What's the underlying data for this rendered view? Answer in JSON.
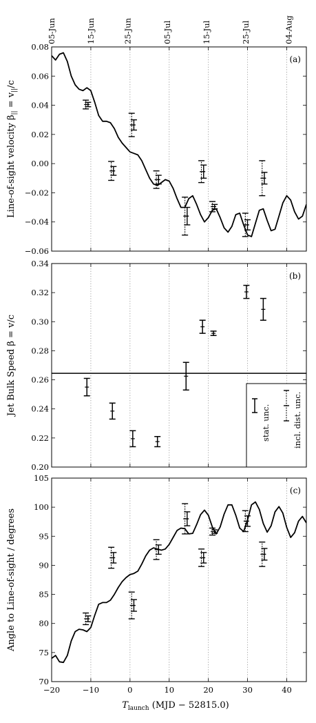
{
  "chart_data": {
    "type": "scatter",
    "x_axis": {
      "label_main": "T",
      "label_sub": "launch",
      "label_rest": " (MJD − 52815.0)",
      "range": [
        -20,
        45
      ],
      "ticks": [
        -20,
        -10,
        0,
        10,
        20,
        30,
        40
      ],
      "tick_labels": [
        "−20",
        "−10",
        "0",
        "10",
        "20",
        "30",
        "40"
      ]
    },
    "top_axis": {
      "ticks_x": [
        -20,
        -10,
        -0.6,
        9.5,
        19.5,
        29.5,
        40.5
      ],
      "labels": [
        "05-Jun",
        "15-Jun",
        "25-Jun",
        "05-Jul",
        "15-Jul",
        "25-Jul",
        "04-Aug"
      ]
    },
    "panels": [
      {
        "id": "a",
        "panel_label": "(a)",
        "ylabel_main": "Line-of-sight velocity β",
        "ylabel_sub": "||",
        "ylabel_rest": " = v",
        "ylabel_sub2": "||",
        "ylabel_end": "/c",
        "ylim": [
          -0.06,
          0.08
        ],
        "yticks": [
          -0.06,
          -0.04,
          -0.02,
          0.0,
          0.02,
          0.04,
          0.06,
          0.08
        ],
        "ytick_labels": [
          "−0.06",
          "−0.04",
          "−0.02",
          "0.00",
          "0.02",
          "0.04",
          "0.06",
          "0.08"
        ],
        "curve": {
          "x": [
            -20,
            -19,
            -18,
            -17,
            -16,
            -15,
            -14,
            -13,
            -12,
            -11,
            -10,
            -9,
            -8,
            -7,
            -6,
            -5,
            -4,
            -3,
            -2,
            -1,
            0,
            1,
            2,
            3,
            4,
            5,
            6,
            7,
            8,
            9,
            10,
            11,
            12,
            13,
            14,
            15,
            16,
            17,
            18,
            19,
            20,
            21,
            22,
            23,
            24,
            25,
            26,
            27,
            28,
            29,
            30,
            31,
            32,
            33,
            34,
            35,
            36,
            37,
            38,
            39,
            40,
            41,
            42,
            43,
            44,
            45
          ],
          "y": [
            0.074,
            0.071,
            0.075,
            0.076,
            0.07,
            0.06,
            0.054,
            0.051,
            0.05,
            0.052,
            0.05,
            0.042,
            0.033,
            0.029,
            0.029,
            0.028,
            0.024,
            0.018,
            0.014,
            0.011,
            0.008,
            0.007,
            0.006,
            0.002,
            -0.004,
            -0.01,
            -0.014,
            -0.015,
            -0.013,
            -0.011,
            -0.012,
            -0.017,
            -0.024,
            -0.03,
            -0.03,
            -0.024,
            -0.022,
            -0.028,
            -0.035,
            -0.04,
            -0.037,
            -0.032,
            -0.031,
            -0.037,
            -0.044,
            -0.047,
            -0.043,
            -0.035,
            -0.034,
            -0.042,
            -0.049,
            -0.05,
            -0.041,
            -0.032,
            -0.031,
            -0.039,
            -0.046,
            -0.045,
            -0.036,
            -0.027,
            -0.022,
            -0.025,
            -0.033,
            -0.038,
            -0.036,
            -0.028
          ]
        },
        "points": [
          {
            "x": -11,
            "y": 0.0405,
            "yerr_stat": 0.0015,
            "yerr_tot": 0.003,
            "xerr": 0.7
          },
          {
            "x": -4.5,
            "y": -0.005,
            "yerr_stat": 0.003,
            "yerr_tot": 0.0065,
            "xerr": 0.7
          },
          {
            "x": 0.7,
            "y": 0.0265,
            "yerr_stat": 0.0035,
            "yerr_tot": 0.008,
            "xerr": 0.7
          },
          {
            "x": 7,
            "y": -0.011,
            "yerr_stat": 0.003,
            "yerr_tot": 0.006,
            "xerr": 0.7
          },
          {
            "x": 14.3,
            "y": -0.036,
            "yerr_stat": 0.006,
            "yerr_tot": 0.013,
            "xerr": 0.7
          },
          {
            "x": 18.5,
            "y": -0.0055,
            "yerr_stat": 0.0045,
            "yerr_tot": 0.0075,
            "xerr": 0.7
          },
          {
            "x": 21.3,
            "y": -0.0295,
            "yerr_stat": 0.0015,
            "yerr_tot": 0.0035,
            "xerr": 0.7
          },
          {
            "x": 29.7,
            "y": -0.042,
            "yerr_stat": 0.0035,
            "yerr_tot": 0.008,
            "xerr": 0.7
          },
          {
            "x": 34,
            "y": -0.01,
            "yerr_stat": 0.004,
            "yerr_tot": 0.012,
            "xerr": 0.7
          }
        ]
      },
      {
        "id": "b",
        "panel_label": "(b)",
        "ylabel_main": "Jet Bulk Speed β = v/c",
        "ylim": [
          0.2,
          0.34
        ],
        "yticks": [
          0.2,
          0.22,
          0.24,
          0.26,
          0.28,
          0.3,
          0.32,
          0.34
        ],
        "ytick_labels": [
          "0.20",
          "0.22",
          "0.24",
          "0.26",
          "0.28",
          "0.30",
          "0.32",
          "0.34"
        ],
        "hline": 0.2645,
        "points": [
          {
            "x": -11,
            "y": 0.255,
            "yerr": 0.006
          },
          {
            "x": -4.5,
            "y": 0.2385,
            "yerr": 0.0055
          },
          {
            "x": 0.7,
            "y": 0.2195,
            "yerr": 0.0055
          },
          {
            "x": 7,
            "y": 0.2175,
            "yerr": 0.0035
          },
          {
            "x": 14.3,
            "y": 0.2625,
            "yerr": 0.0095
          },
          {
            "x": 18.5,
            "y": 0.2965,
            "yerr": 0.0045
          },
          {
            "x": 21.3,
            "y": 0.292,
            "yerr": 0.0015
          },
          {
            "x": 29.7,
            "y": 0.3205,
            "yerr": 0.0045
          },
          {
            "x": 34,
            "y": 0.3085,
            "yerr": 0.0075
          }
        ],
        "legend": {
          "position": "lower-right",
          "entries": [
            "stat. unc.",
            "incl. dist. unc."
          ]
        }
      },
      {
        "id": "c",
        "panel_label": "(c)",
        "ylabel_main": "Angle to Line-of-sight / degrees",
        "ylim": [
          70,
          105
        ],
        "yticks": [
          70,
          75,
          80,
          85,
          90,
          95,
          100,
          105
        ],
        "ytick_labels": [
          "70",
          "75",
          "80",
          "85",
          "90",
          "95",
          "100",
          "105"
        ],
        "curve": {
          "x": [
            -20,
            -19,
            -18,
            -17,
            -16,
            -15,
            -14,
            -13,
            -12,
            -11,
            -10,
            -9,
            -8,
            -7,
            -6,
            -5,
            -4,
            -3,
            -2,
            -1,
            0,
            1,
            2,
            3,
            4,
            5,
            6,
            7,
            8,
            9,
            10,
            11,
            12,
            13,
            14,
            15,
            16,
            17,
            18,
            19,
            20,
            21,
            22,
            23,
            24,
            25,
            26,
            27,
            28,
            29,
            30,
            31,
            32,
            33,
            34,
            35,
            36,
            37,
            38,
            39,
            40,
            41,
            42,
            43,
            44,
            45
          ],
          "y": [
            74.0,
            74.5,
            73.4,
            73.3,
            74.5,
            77.0,
            78.6,
            79.0,
            78.9,
            78.6,
            79.3,
            81.4,
            83.3,
            83.6,
            83.6,
            84.0,
            85.0,
            86.2,
            87.2,
            87.9,
            88.4,
            88.6,
            89.0,
            90.2,
            91.6,
            92.6,
            93.0,
            92.8,
            92.6,
            92.8,
            93.6,
            94.8,
            96.0,
            96.4,
            96.3,
            95.4,
            95.5,
            97.0,
            98.7,
            99.5,
            98.6,
            96.6,
            95.4,
            96.6,
            98.8,
            100.4,
            100.4,
            98.6,
            96.4,
            95.8,
            97.8,
            100.4,
            100.9,
            99.6,
            97.2,
            95.7,
            96.8,
            99.2,
            100.1,
            99.0,
            96.5,
            94.8,
            95.6,
            97.6,
            98.4,
            97.3
          ]
        },
        "points": [
          {
            "x": -11,
            "y": 80.8,
            "yerr_stat": 0.5,
            "yerr_tot": 1.0,
            "xerr": 0.7
          },
          {
            "x": -4.5,
            "y": 91.3,
            "yerr_stat": 0.9,
            "yerr_tot": 1.8,
            "xerr": 0.7
          },
          {
            "x": 0.7,
            "y": 83.1,
            "yerr_stat": 1.0,
            "yerr_tot": 2.3,
            "xerr": 0.7
          },
          {
            "x": 7,
            "y": 92.7,
            "yerr_stat": 0.8,
            "yerr_tot": 1.7,
            "xerr": 0.7
          },
          {
            "x": 14.3,
            "y": 98.0,
            "yerr_stat": 1.2,
            "yerr_tot": 2.6,
            "xerr": 0.7
          },
          {
            "x": 18.5,
            "y": 91.3,
            "yerr_stat": 0.9,
            "yerr_tot": 1.5,
            "xerr": 0.7
          },
          {
            "x": 21.3,
            "y": 95.8,
            "yerr_stat": 0.3,
            "yerr_tot": 0.6,
            "xerr": 0.7
          },
          {
            "x": 29.7,
            "y": 97.6,
            "yerr_stat": 0.9,
            "yerr_tot": 1.8,
            "xerr": 0.7
          },
          {
            "x": 34,
            "y": 91.9,
            "yerr_stat": 1.0,
            "yerr_tot": 2.1,
            "xerr": 0.7
          }
        ]
      }
    ],
    "grid": "vertical dotted at x ticks",
    "colors": {
      "line": "#000000",
      "grid": "#999999",
      "background": "#ffffff"
    }
  }
}
